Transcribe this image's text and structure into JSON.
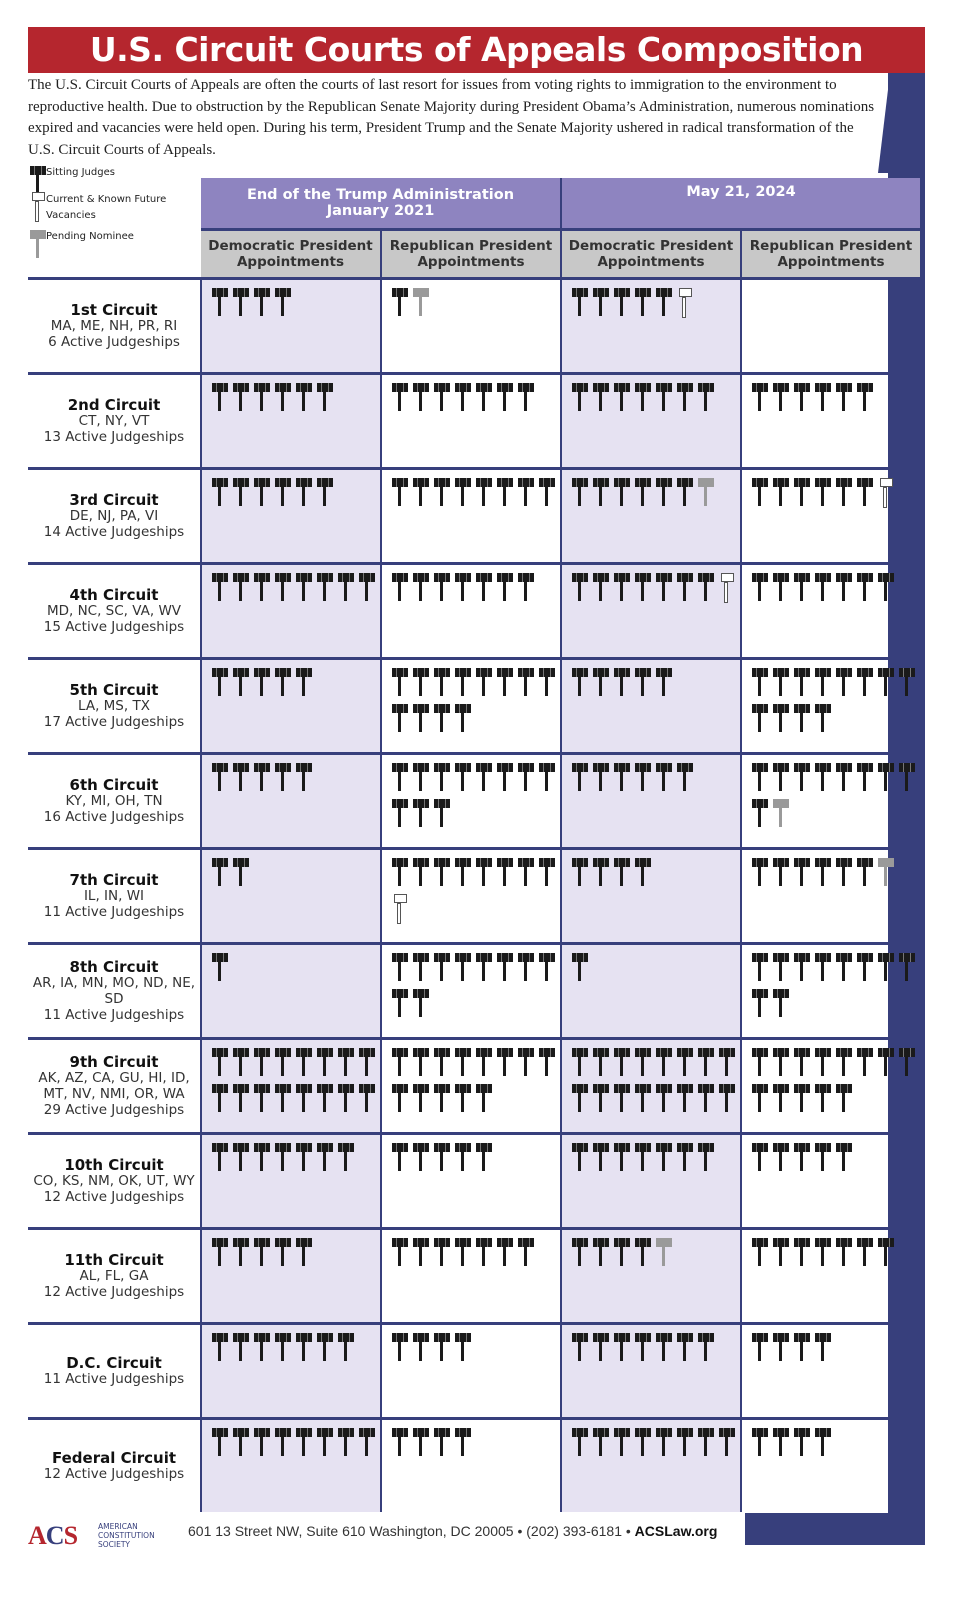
{
  "title": "U.S. Circuit Courts of Appeals Composition",
  "intro": "The U.S. Circuit Courts of Appeals are often the courts of last resort for issues from voting rights to immigration to the environment to reproductive health. Due to obstruction by the Republican Senate Majority during President Obama’s Administration, numerous nominations expired and vacancies were held open. During his term, President Trump and the Senate Majority ushered in radical transformation of the U.S. Circuit Courts of Appeals.",
  "legend": {
    "sitting": "Sitting Judges",
    "vacancies": "Current & Known Future Vacancies",
    "pending": "Pending Nominee"
  },
  "periods": [
    {
      "label": "End of the Trump Administration",
      "sub": "January 2021"
    },
    {
      "label": "May 21, 2024",
      "sub": ""
    }
  ],
  "columns": [
    "Democratic President Appointments",
    "Republican President Appointments",
    "Democratic President Appointments",
    "Republican President Appointments"
  ],
  "colors": {
    "title": "#b5262e",
    "header": "#8e84c0",
    "navy": "#373f7c",
    "dem_cell": "#e6e2f2",
    "subheader": "#c8c8c8"
  },
  "circuits": [
    {
      "name": "1st Circuit",
      "states": "MA, ME, NH, PR, RI",
      "judgeships": "6 Active Judgeships",
      "cells": [
        {
          "s": 4
        },
        {
          "s": 1,
          "p": 1
        },
        {
          "s": 5,
          "v": 1
        },
        {
          "s": 0
        }
      ]
    },
    {
      "name": "2nd Circuit",
      "states": "CT, NY, VT",
      "judgeships": "13 Active Judgeships",
      "cells": [
        {
          "s": 6
        },
        {
          "s": 7
        },
        {
          "s": 7
        },
        {
          "s": 6
        }
      ]
    },
    {
      "name": "3rd Circuit",
      "states": "DE, NJ, PA, VI",
      "judgeships": "14 Active Judgeships",
      "cells": [
        {
          "s": 6
        },
        {
          "s": 8
        },
        {
          "s": 6,
          "p": 1
        },
        {
          "s": 6,
          "v": 1
        }
      ]
    },
    {
      "name": "4th Circuit",
      "states": "MD, NC, SC, VA, WV",
      "judgeships": "15 Active Judgeships",
      "cells": [
        {
          "s": 8
        },
        {
          "s": 7
        },
        {
          "s": 7,
          "v": 1
        },
        {
          "s": 7
        }
      ]
    },
    {
      "name": "5th Circuit",
      "states": "LA, MS, TX",
      "judgeships": "17 Active Judgeships",
      "cells": [
        {
          "s": 5
        },
        {
          "s": 12
        },
        {
          "s": 5
        },
        {
          "s": 12
        }
      ]
    },
    {
      "name": "6th Circuit",
      "states": "KY, MI, OH, TN",
      "judgeships": "16 Active Judgeships",
      "cells": [
        {
          "s": 5
        },
        {
          "s": 11
        },
        {
          "s": 6
        },
        {
          "s": 9,
          "p": 1
        }
      ]
    },
    {
      "name": "7th Circuit",
      "states": "IL, IN, WI",
      "judgeships": "11 Active Judgeships",
      "cells": [
        {
          "s": 2
        },
        {
          "s": 8,
          "v": 1
        },
        {
          "s": 4
        },
        {
          "s": 6,
          "p": 1
        }
      ]
    },
    {
      "name": "8th Circuit",
      "states": "AR, IA, MN, MO, ND, NE, SD",
      "judgeships": "11 Active Judgeships",
      "cells": [
        {
          "s": 1
        },
        {
          "s": 10
        },
        {
          "s": 1
        },
        {
          "s": 10
        }
      ]
    },
    {
      "name": "9th Circuit",
      "states": "AK, AZ, CA, GU, HI, ID, MT, NV, NMI, OR, WA",
      "judgeships": "29 Active Judgeships",
      "cells": [
        {
          "s": 16
        },
        {
          "s": 13
        },
        {
          "s": 16
        },
        {
          "s": 13
        }
      ]
    },
    {
      "name": "10th Circuit",
      "states": "CO, KS, NM, OK, UT, WY",
      "judgeships": "12 Active Judgeships",
      "cells": [
        {
          "s": 7
        },
        {
          "s": 5
        },
        {
          "s": 7
        },
        {
          "s": 5
        }
      ]
    },
    {
      "name": "11th Circuit",
      "states": "AL, FL, GA",
      "judgeships": "12 Active Judgeships",
      "cells": [
        {
          "s": 5
        },
        {
          "s": 7
        },
        {
          "s": 4,
          "p": 1
        },
        {
          "s": 7
        }
      ]
    },
    {
      "name": "D.C. Circuit",
      "states": "",
      "judgeships": "11 Active Judgeships",
      "cells": [
        {
          "s": 7
        },
        {
          "s": 4
        },
        {
          "s": 7
        },
        {
          "s": 4
        }
      ]
    },
    {
      "name": "Federal Circuit",
      "states": "",
      "judgeships": "12 Active Judgeships",
      "cells": [
        {
          "s": 8
        },
        {
          "s": 4
        },
        {
          "s": 8
        },
        {
          "s": 4
        }
      ]
    }
  ],
  "footer": {
    "address": "601 13 Street NW, Suite 610 Washington, DC 20005 • (202) 393-6181 • ",
    "site": "ACSLaw.org"
  },
  "logo": {
    "mark": "ACS",
    "name": "AMERICAN CONSTITUTION SOCIETY"
  }
}
